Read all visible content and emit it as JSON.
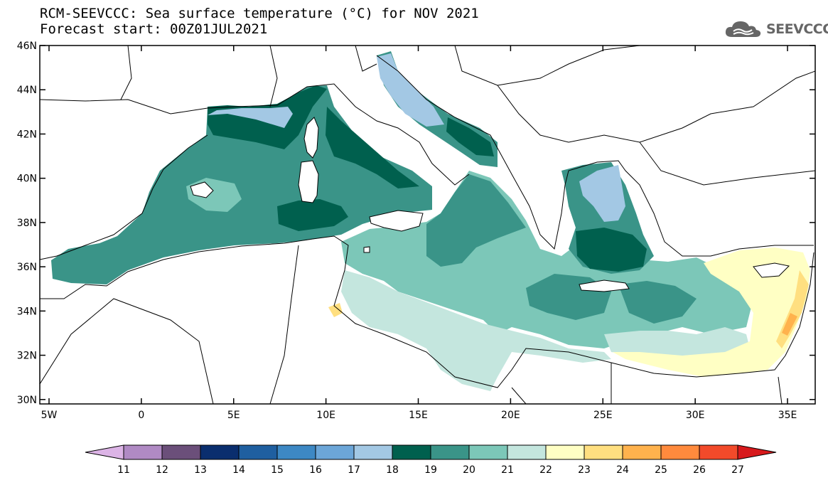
{
  "header": {
    "title": "RCM-SEEVCCC: Sea surface temperature (°C) for NOV 2021",
    "subtitle": "Forecast start: 00Z01JUL2021"
  },
  "logo": {
    "text": "SEEVCCC",
    "icon": "cloud-icon"
  },
  "map": {
    "lon_range": [
      -5.5,
      36.5
    ],
    "lat_range": [
      29.8,
      46
    ],
    "lat_ticks": [
      {
        "value": 46,
        "label": "46N"
      },
      {
        "value": 44,
        "label": "44N"
      },
      {
        "value": 42,
        "label": "42N"
      },
      {
        "value": 40,
        "label": "40N"
      },
      {
        "value": 38,
        "label": "38N"
      },
      {
        "value": 36,
        "label": "36N"
      },
      {
        "value": 34,
        "label": "34N"
      },
      {
        "value": 32,
        "label": "32N"
      },
      {
        "value": 30,
        "label": "30N"
      }
    ],
    "lon_ticks": [
      {
        "value": -5,
        "label": "5W"
      },
      {
        "value": 0,
        "label": "0"
      },
      {
        "value": 5,
        "label": "5E"
      },
      {
        "value": 10,
        "label": "10E"
      },
      {
        "value": 15,
        "label": "15E"
      },
      {
        "value": 20,
        "label": "20E"
      },
      {
        "value": 25,
        "label": "25E"
      },
      {
        "value": 30,
        "label": "30E"
      },
      {
        "value": 35,
        "label": "35E"
      }
    ]
  },
  "colorbar": {
    "labels": [
      "11",
      "12",
      "13",
      "14",
      "15",
      "16",
      "17",
      "18",
      "19",
      "20",
      "21",
      "22",
      "23",
      "24",
      "25",
      "26",
      "27"
    ],
    "low_color": "#dcb4e6",
    "high_color": "#d7191c",
    "colors": [
      "#b08ac4",
      "#6b4f7a",
      "#0a2e6e",
      "#1f5fa0",
      "#3d88c4",
      "#6ca6d8",
      "#a3c8e4",
      "#00604e",
      "#3a9488",
      "#7cc7b8",
      "#c4e6de",
      "#ffffc4",
      "#ffdf80",
      "#ffb24d",
      "#ff8a3d",
      "#f24a2a"
    ],
    "sea_colors": {
      "c17": "#a3c8e4",
      "c18": "#00604e",
      "c19": "#3a9488",
      "c20": "#7cc7b8",
      "c21": "#c4e6de",
      "c22": "#ffffc4",
      "c23": "#ffdf80",
      "c24": "#ffb24d"
    }
  }
}
